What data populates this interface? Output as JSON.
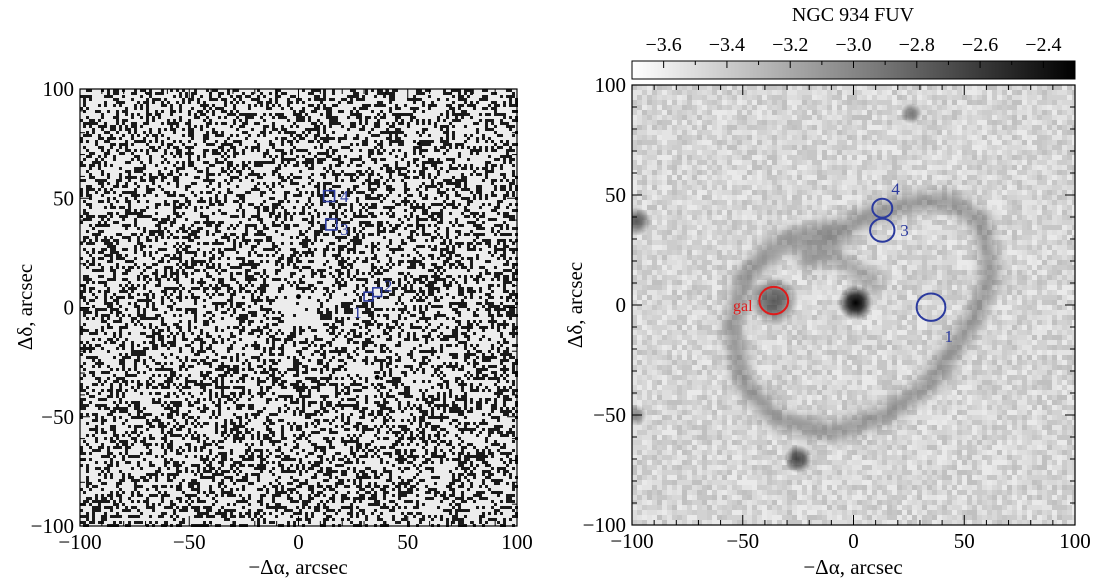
{
  "colors": {
    "axis": "#000000",
    "marker_blue": "#2b3a9e",
    "marker_red": "#e01b1b",
    "image_background": "#e6e6e6"
  },
  "chart_data": [
    {
      "type": "heatmap",
      "panel": "left",
      "title": "",
      "xlabel": "−Δα, arcsec",
      "ylabel": "Δδ, arcsec",
      "xlim": [
        -100,
        100
      ],
      "ylim": [
        -100,
        100
      ],
      "xticks": [
        -100,
        -50,
        0,
        50,
        100
      ],
      "yticks": [
        -100,
        -50,
        0,
        50,
        100
      ],
      "xtick_labels": [
        "−100",
        "−50",
        "0",
        "50",
        "100"
      ],
      "ytick_labels": [
        "−100",
        "−50",
        "0",
        "50",
        "100"
      ],
      "image": "noisy residual map (black/white speckle)",
      "markers": [
        {
          "shape": "square",
          "label": "1",
          "x": 32,
          "y": 5,
          "size": 4,
          "label_x": 27,
          "label_y": -2
        },
        {
          "shape": "square",
          "label": "2",
          "x": 36,
          "y": 7,
          "size": 4,
          "label_x": 41,
          "label_y": 10
        },
        {
          "shape": "square",
          "label": "3",
          "x": 15,
          "y": 38,
          "size": 5,
          "label_x": 21,
          "label_y": 36
        },
        {
          "shape": "square",
          "label": "4",
          "x": 14,
          "y": 51,
          "size": 5,
          "label_x": 21,
          "label_y": 51
        }
      ]
    },
    {
      "type": "heatmap",
      "panel": "right",
      "title": "NGC 934 FUV",
      "xlabel": "−Δα, arcsec",
      "ylabel": "Δδ, arcsec",
      "xlim": [
        -100,
        100
      ],
      "ylim": [
        -100,
        100
      ],
      "xticks": [
        -100,
        -50,
        0,
        50,
        100
      ],
      "yticks": [
        -100,
        -50,
        0,
        50,
        100
      ],
      "xtick_labels": [
        "−100",
        "−50",
        "0",
        "50",
        "100"
      ],
      "ytick_labels": [
        "−100",
        "−50",
        "0",
        "50",
        "100"
      ],
      "colorbar": {
        "range": [
          -3.7,
          -2.3
        ],
        "ticks": [
          -3.6,
          -3.4,
          -3.2,
          -3.0,
          -2.8,
          -2.6,
          -2.4
        ],
        "tick_labels": [
          "−3.6",
          "−3.4",
          "−3.2",
          "−3.0",
          "−2.8",
          "−2.6",
          "−2.4"
        ],
        "colormap": "white-to-black"
      },
      "sources": [
        {
          "x": 1,
          "y": 1,
          "brightness": 1.0,
          "radius": 5
        },
        {
          "x": -36,
          "y": 2,
          "brightness": 0.6,
          "radius": 7
        },
        {
          "x": -25,
          "y": -70,
          "brightness": 0.7,
          "radius": 4
        },
        {
          "x": 26,
          "y": 87,
          "brightness": 0.45,
          "radius": 3
        },
        {
          "x": -98,
          "y": 38,
          "brightness": 0.55,
          "radius": 4
        },
        {
          "x": -98,
          "y": -50,
          "brightness": 0.35,
          "radius": 3
        }
      ],
      "markers": [
        {
          "shape": "circle",
          "label": "1",
          "x": 35,
          "y": -1,
          "r": 6.5,
          "color": "blue",
          "label_x": 43,
          "label_y": -14
        },
        {
          "shape": "circle",
          "label": "3",
          "x": 13,
          "y": 34,
          "r": 5.5,
          "color": "blue",
          "label_x": 23,
          "label_y": 34
        },
        {
          "shape": "circle",
          "label": "4",
          "x": 13,
          "y": 44,
          "r": 4.5,
          "color": "blue",
          "label_x": 19,
          "label_y": 53
        },
        {
          "shape": "circle",
          "label": "gal",
          "x": -36,
          "y": 2,
          "r": 6.5,
          "color": "red",
          "label_x": -50,
          "label_y": 0
        }
      ]
    }
  ]
}
